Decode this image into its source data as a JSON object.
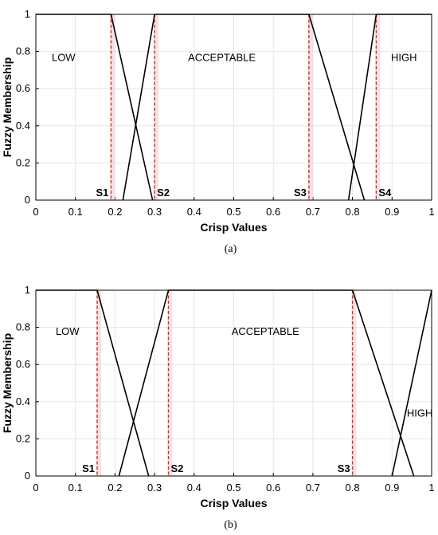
{
  "chart_data": [
    {
      "type": "line",
      "caption": "(a)",
      "xlabel": "Crisp Values",
      "ylabel": "Fuzzy Membership",
      "xlim": [
        0,
        1
      ],
      "ylim": [
        0,
        1
      ],
      "x_ticks": [
        "0",
        "0.1",
        "0.2",
        "0.3",
        "0.4",
        "0.5",
        "0.6",
        "0.7",
        "0.8",
        "0.9",
        "1"
      ],
      "y_ticks": [
        "0",
        "0.2",
        "0.4",
        "0.6",
        "0.8",
        "1"
      ],
      "grid": true,
      "series": [
        {
          "name": "LOW",
          "points": [
            [
              0,
              1
            ],
            [
              0.19,
              1
            ],
            [
              0.295,
              0
            ]
          ]
        },
        {
          "name": "ACCEPTABLE",
          "points": [
            [
              0.22,
              0
            ],
            [
              0.3,
              1
            ],
            [
              0.69,
              1
            ],
            [
              0.83,
              0
            ]
          ]
        },
        {
          "name": "HIGH",
          "points": [
            [
              0.79,
              0
            ],
            [
              0.86,
              1
            ],
            [
              1,
              1
            ]
          ]
        }
      ],
      "regions": [
        {
          "label": "LOW",
          "x": 0.07,
          "y": 0.75
        },
        {
          "label": "ACCEPTABLE",
          "x": 0.47,
          "y": 0.75
        },
        {
          "label": "HIGH",
          "x": 0.93,
          "y": 0.75
        }
      ],
      "thresholds": [
        {
          "label": "S1",
          "x": 0.19
        },
        {
          "label": "S2",
          "x": 0.3
        },
        {
          "label": "S3",
          "x": 0.69
        },
        {
          "label": "S4",
          "x": 0.86
        }
      ]
    },
    {
      "type": "line",
      "caption": "(b)",
      "xlabel": "Crisp Values",
      "ylabel": "Fuzzy Membership",
      "xlim": [
        0,
        1
      ],
      "ylim": [
        0,
        1
      ],
      "x_ticks": [
        "0",
        "0.1",
        "0.2",
        "0.3",
        "0.4",
        "0.5",
        "0.6",
        "0.7",
        "0.8",
        "0.9",
        "1"
      ],
      "y_ticks": [
        "0",
        "0.2",
        "0.4",
        "0.6",
        "0.8",
        "1"
      ],
      "grid": true,
      "series": [
        {
          "name": "LOW",
          "points": [
            [
              0,
              1
            ],
            [
              0.155,
              1
            ],
            [
              0.285,
              0
            ]
          ]
        },
        {
          "name": "ACCEPTABLE",
          "points": [
            [
              0.21,
              0
            ],
            [
              0.335,
              1
            ],
            [
              0.8,
              1
            ],
            [
              0.955,
              0
            ]
          ]
        },
        {
          "name": "HIGH",
          "points": [
            [
              0.9,
              0
            ],
            [
              1,
              1
            ]
          ]
        }
      ],
      "regions": [
        {
          "label": "LOW",
          "x": 0.08,
          "y": 0.76
        },
        {
          "label": "ACCEPTABLE",
          "x": 0.58,
          "y": 0.76
        },
        {
          "label": "HIGH",
          "x": 0.97,
          "y": 0.32
        }
      ],
      "thresholds": [
        {
          "label": "S1",
          "x": 0.155
        },
        {
          "label": "S2",
          "x": 0.335
        },
        {
          "label": "S3",
          "x": 0.8
        }
      ]
    }
  ],
  "colors": {
    "membership_line": "#000000",
    "threshold_line": "#c0392b",
    "threshold_shade": "#f6d6dc",
    "grid": "#e6e6e6",
    "axis": "#000000"
  }
}
